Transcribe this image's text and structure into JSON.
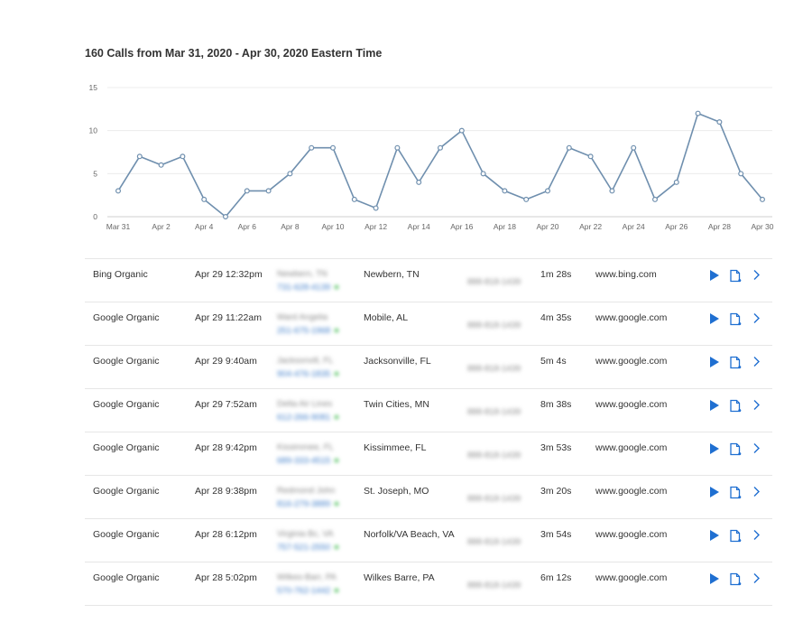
{
  "header": {
    "title": "160 Calls from Mar 31, 2020 - Apr 30, 2020 Eastern Time"
  },
  "chart_data": {
    "type": "line",
    "title": "",
    "xlabel": "",
    "ylabel": "",
    "ylim": [
      0,
      15
    ],
    "yticks": [
      "0",
      "5",
      "10",
      "15"
    ],
    "grid": true,
    "x_tick_labels": [
      "Mar 31",
      "Apr 2",
      "Apr 4",
      "Apr 6",
      "Apr 8",
      "Apr 10",
      "Apr 12",
      "Apr 14",
      "Apr 16",
      "Apr 18",
      "Apr 20",
      "Apr 22",
      "Apr 24",
      "Apr 26",
      "Apr 28",
      "Apr 30"
    ],
    "x": [
      "Mar 31",
      "Apr 1",
      "Apr 2",
      "Apr 3",
      "Apr 4",
      "Apr 5",
      "Apr 6",
      "Apr 7",
      "Apr 8",
      "Apr 9",
      "Apr 10",
      "Apr 11",
      "Apr 12",
      "Apr 13",
      "Apr 14",
      "Apr 15",
      "Apr 16",
      "Apr 17",
      "Apr 18",
      "Apr 19",
      "Apr 20",
      "Apr 21",
      "Apr 22",
      "Apr 23",
      "Apr 24",
      "Apr 25",
      "Apr 26",
      "Apr 27",
      "Apr 28",
      "Apr 29",
      "Apr 30"
    ],
    "series": [
      {
        "values": [
          3,
          7,
          6,
          7,
          2,
          0,
          3,
          3,
          5,
          8,
          8,
          2,
          1,
          8,
          4,
          8,
          10,
          5,
          3,
          2,
          3,
          8,
          7,
          3,
          8,
          2,
          4,
          12,
          11,
          5,
          2
        ],
        "color": "#6f8fae"
      }
    ]
  },
  "calls": [
    {
      "source": "Bing Organic",
      "time": "Apr 29 12:32pm",
      "caller": "Newbern, TN",
      "phone": "731-628-4139",
      "city": "Newbern, TN",
      "tracking": "888-818-1439",
      "duration": "1m 28s",
      "site": "www.bing.com"
    },
    {
      "source": "Google Organic",
      "time": "Apr 29 11:22am",
      "caller": "Ward Angelia",
      "phone": "251-675-1968",
      "city": "Mobile, AL",
      "tracking": "888-818-1439",
      "duration": "4m 35s",
      "site": "www.google.com"
    },
    {
      "source": "Google Organic",
      "time": "Apr 29 9:40am",
      "caller": "Jacksonvill, FL",
      "phone": "904-476-1835",
      "city": "Jacksonville, FL",
      "tracking": "888-818-1439",
      "duration": "5m 4s",
      "site": "www.google.com"
    },
    {
      "source": "Google Organic",
      "time": "Apr 29 7:52am",
      "caller": "Delta Air Lines",
      "phone": "612-266-9081",
      "city": "Twin Cities, MN",
      "tracking": "888-818-1439",
      "duration": "8m 38s",
      "site": "www.google.com"
    },
    {
      "source": "Google Organic",
      "time": "Apr 28 9:42pm",
      "caller": "Kissimmee, FL",
      "phone": "689-333-4515",
      "city": "Kissimmee, FL",
      "tracking": "888-818-1439",
      "duration": "3m 53s",
      "site": "www.google.com"
    },
    {
      "source": "Google Organic",
      "time": "Apr 28 9:38pm",
      "caller": "Redmond John",
      "phone": "816-279-3889",
      "city": "St. Joseph, MO",
      "tracking": "888-818-1439",
      "duration": "3m 20s",
      "site": "www.google.com"
    },
    {
      "source": "Google Organic",
      "time": "Apr 28 6:12pm",
      "caller": "Virginia Bc, VA",
      "phone": "757-521-2550",
      "city": "Norfolk/VA Beach, VA",
      "tracking": "888-818-1439",
      "duration": "3m 54s",
      "site": "www.google.com"
    },
    {
      "source": "Google Organic",
      "time": "Apr 28 5:02pm",
      "caller": "Wilkes-Barr, PA",
      "phone": "570-762-1442",
      "city": "Wilkes Barre, PA",
      "tracking": "888-818-1439",
      "duration": "6m 12s",
      "site": "www.google.com"
    }
  ],
  "icons": {
    "play": "play-icon",
    "note": "note-icon",
    "next": "chevron-right-icon"
  },
  "colors": {
    "accent": "#1f6fd1",
    "series": "#6f8fae",
    "status_dot": "#33b545"
  }
}
